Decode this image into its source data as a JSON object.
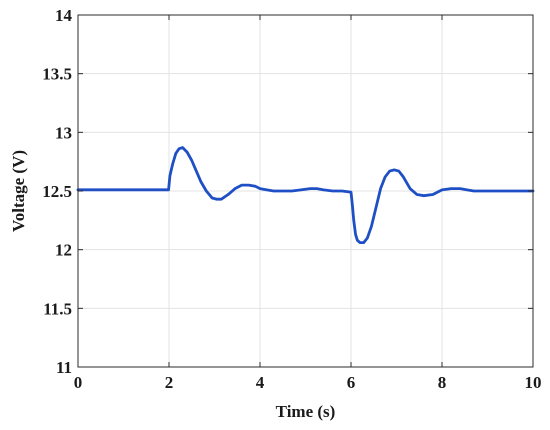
{
  "chart_data": {
    "type": "line",
    "title": "",
    "xlabel": "Time (s)",
    "ylabel": "Voltage (V)",
    "xlim": [
      0,
      10
    ],
    "ylim": [
      11,
      14
    ],
    "xticks": [
      0,
      2,
      4,
      6,
      8,
      10
    ],
    "yticks": [
      11,
      11.5,
      12,
      12.5,
      13,
      13.5,
      14
    ],
    "xtick_labels": [
      "0",
      "2",
      "4",
      "6",
      "8",
      "10"
    ],
    "ytick_labels": [
      "11",
      "11.5",
      "12",
      "12.5",
      "13",
      "13.5",
      "14"
    ],
    "grid": true,
    "legend": "none",
    "colors": {
      "line": "#1f4fc4",
      "grid": "#e3e3e3",
      "axes": "#2b2b2b"
    },
    "series": [
      {
        "x": [
          0,
          1.0,
          1.99,
          2.02,
          2.08,
          2.15,
          2.22,
          2.3,
          2.4,
          2.5,
          2.6,
          2.7,
          2.82,
          2.95,
          3.05,
          3.15,
          3.3,
          3.45,
          3.6,
          3.75,
          3.9,
          4.0,
          4.15,
          4.3,
          4.5,
          4.7,
          4.9,
          5.1,
          5.25,
          5.4,
          5.6,
          5.8,
          6.0,
          6.03,
          6.06,
          6.1,
          6.14,
          6.2,
          6.28,
          6.36,
          6.45,
          6.55,
          6.65,
          6.75,
          6.85,
          6.95,
          7.05,
          7.15,
          7.3,
          7.45,
          7.6,
          7.8,
          8.0,
          8.2,
          8.4,
          8.55,
          8.7,
          9.0,
          9.5,
          10.0
        ],
        "y": [
          12.51,
          12.51,
          12.51,
          12.63,
          12.73,
          12.82,
          12.86,
          12.87,
          12.83,
          12.76,
          12.67,
          12.58,
          12.5,
          12.44,
          12.43,
          12.43,
          12.47,
          12.52,
          12.55,
          12.55,
          12.54,
          12.52,
          12.51,
          12.5,
          12.5,
          12.5,
          12.51,
          12.52,
          12.52,
          12.51,
          12.5,
          12.5,
          12.49,
          12.38,
          12.25,
          12.13,
          12.08,
          12.06,
          12.06,
          12.1,
          12.2,
          12.36,
          12.52,
          12.62,
          12.67,
          12.68,
          12.67,
          12.62,
          12.52,
          12.47,
          12.46,
          12.47,
          12.51,
          12.52,
          12.52,
          12.51,
          12.5,
          12.5,
          12.5,
          12.5
        ]
      }
    ]
  }
}
